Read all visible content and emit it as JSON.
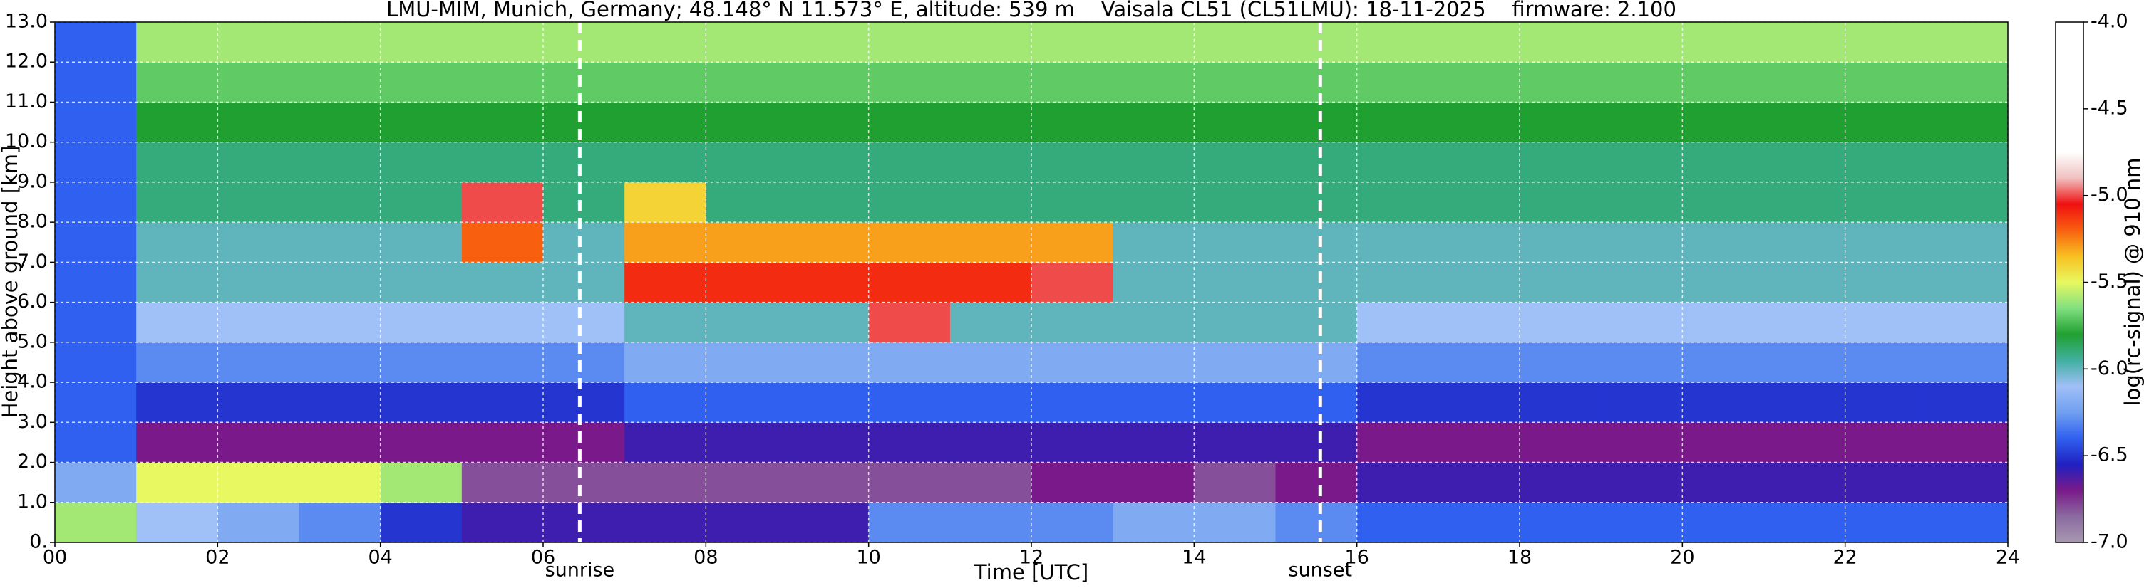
{
  "chart_data": {
    "type": "heatmap",
    "title": "LMU-MIM, Munich, Germany; 48.148° N 11.573° E, altitude: 539 m    Vaisala CL51 (CL51LMU): 18-11-2025    firmware: 2.100",
    "xlabel": "Time [UTC]",
    "ylabel": "Height above ground [km]",
    "colorbar_label": "log(rc-signal) @ 910 nm",
    "xlim": [
      0,
      24
    ],
    "ylim": [
      0,
      13
    ],
    "xticks": [
      {
        "value": 0,
        "label": "00"
      },
      {
        "value": 2,
        "label": "02"
      },
      {
        "value": 4,
        "label": "04"
      },
      {
        "value": 6,
        "label": "06"
      },
      {
        "value": 8,
        "label": "08"
      },
      10,
      12,
      14,
      16,
      18,
      20,
      22,
      24
    ],
    "yticks": [
      {
        "value": 0,
        "label": "0."
      },
      {
        "value": 1,
        "label": "1.0"
      },
      {
        "value": 2,
        "label": "2.0"
      },
      {
        "value": 3,
        "label": "3.0"
      },
      {
        "value": 4,
        "label": "4.0"
      },
      {
        "value": 5,
        "label": "5.0"
      },
      {
        "value": 6,
        "label": "6.0"
      },
      {
        "value": 7,
        "label": "7.0"
      },
      {
        "value": 8,
        "label": "8.0"
      },
      {
        "value": 9,
        "label": "9.0"
      },
      {
        "value": 10,
        "label": "10.0"
      },
      {
        "value": 11,
        "label": "11.0"
      },
      {
        "value": 12,
        "label": "12.0"
      },
      {
        "value": 13,
        "label": "13.0"
      }
    ],
    "clim": [
      -7,
      -4
    ],
    "cticks": [
      {
        "value": -7,
        "label": "-7.0"
      },
      -6.5,
      {
        "value": -6,
        "label": "-6.0"
      },
      -5.5,
      {
        "value": -5,
        "label": "-5.0"
      },
      -4.5,
      {
        "value": -4,
        "label": "-4.0"
      }
    ],
    "colorscale": [
      "#a898b0",
      "#8a6aa0",
      "#7a1a8a",
      "#2020c0",
      "#3060f0",
      "#70a0f0",
      "#a0c0f8",
      "#40b0a0",
      "#20a030",
      "#80e080",
      "#e8f860",
      "#f8c020",
      "#f86010",
      "#f01010",
      "#f0c0c0",
      "#ffffff",
      "#ffffff",
      "#ffffff",
      "#ffffff",
      "#ffffff",
      "#ffffff"
    ],
    "grid": true,
    "xbins": [
      0,
      1,
      2,
      3,
      4,
      5,
      6,
      7,
      8,
      9,
      10,
      11,
      12,
      13,
      14,
      15,
      16,
      17,
      18,
      19,
      20,
      21,
      22,
      23,
      24
    ],
    "ybins": [
      0,
      1,
      2,
      3,
      4,
      5,
      6,
      7,
      8,
      9,
      10,
      11,
      12,
      13
    ],
    "z": [
      [
        -5.6,
        -6.1,
        -6.2,
        -6.3,
        -6.5,
        -6.6,
        -6.6,
        -6.6,
        -6.6,
        -6.6,
        -6.3,
        -6.3,
        -6.3,
        -6.2,
        -6.2,
        -6.3,
        -6.4,
        -6.4,
        -6.4,
        -6.4,
        -6.4,
        -6.4,
        -6.4,
        -6.4
      ],
      [
        -6.2,
        -5.5,
        -5.5,
        -5.5,
        -5.6,
        -6.8,
        -6.8,
        -6.8,
        -6.8,
        -6.8,
        -6.8,
        -6.8,
        -6.7,
        -6.7,
        -6.8,
        -6.7,
        -6.6,
        -6.6,
        -6.6,
        -6.6,
        -6.6,
        -6.6,
        -6.6,
        -6.6
      ],
      [
        -6.4,
        -6.7,
        -6.7,
        -6.7,
        -6.7,
        -6.7,
        -6.7,
        -6.6,
        -6.6,
        -6.6,
        -6.6,
        -6.6,
        -6.6,
        -6.6,
        -6.6,
        -6.6,
        -6.7,
        -6.7,
        -6.7,
        -6.7,
        -6.7,
        -6.7,
        -6.7,
        -6.7
      ],
      [
        -6.4,
        -6.5,
        -6.5,
        -6.5,
        -6.5,
        -6.5,
        -6.5,
        -6.4,
        -6.4,
        -6.4,
        -6.4,
        -6.4,
        -6.4,
        -6.4,
        -6.4,
        -6.4,
        -6.5,
        -6.5,
        -6.5,
        -6.5,
        -6.5,
        -6.5,
        -6.5,
        -6.5
      ],
      [
        -6.4,
        -6.3,
        -6.3,
        -6.3,
        -6.3,
        -6.3,
        -6.3,
        -6.2,
        -6.2,
        -6.2,
        -6.2,
        -6.2,
        -6.2,
        -6.2,
        -6.2,
        -6.2,
        -6.3,
        -6.3,
        -6.3,
        -6.3,
        -6.3,
        -6.3,
        -6.3,
        -6.3
      ],
      [
        -6.4,
        -6.1,
        -6.1,
        -6.1,
        -6.1,
        -6.1,
        -6.1,
        -6.0,
        -6.0,
        -6.0,
        -5.0,
        -6.0,
        -6.0,
        -6.0,
        -6.0,
        -6.0,
        -6.1,
        -6.1,
        -6.1,
        -6.1,
        -6.1,
        -6.1,
        -6.1,
        -6.1
      ],
      [
        -6.4,
        -6.0,
        -6.0,
        -6.0,
        -6.0,
        -6.0,
        -6.0,
        -5.1,
        -5.1,
        -5.1,
        -5.1,
        -5.1,
        -5.0,
        -6.0,
        -6.0,
        -6.0,
        -6.0,
        -6.0,
        -6.0,
        -6.0,
        -6.0,
        -6.0,
        -6.0,
        -6.0
      ],
      [
        -6.4,
        -6.0,
        -6.0,
        -6.0,
        -6.0,
        -5.2,
        -6.0,
        -5.3,
        -5.3,
        -5.3,
        -5.3,
        -5.3,
        -5.3,
        -6.0,
        -6.0,
        -6.0,
        -6.0,
        -6.0,
        -6.0,
        -6.0,
        -6.0,
        -6.0,
        -6.0,
        -6.0
      ],
      [
        -6.4,
        -5.9,
        -5.9,
        -5.9,
        -5.9,
        -5.0,
        -5.9,
        -5.4,
        -5.9,
        -5.9,
        -5.9,
        -5.9,
        -5.9,
        -5.9,
        -5.9,
        -5.9,
        -5.9,
        -5.9,
        -5.9,
        -5.9,
        -5.9,
        -5.9,
        -5.9,
        -5.9
      ],
      [
        -6.4,
        -5.9,
        -5.9,
        -5.9,
        -5.9,
        -5.9,
        -5.9,
        -5.9,
        -5.9,
        -5.9,
        -5.9,
        -5.9,
        -5.9,
        -5.9,
        -5.9,
        -5.9,
        -5.9,
        -5.9,
        -5.9,
        -5.9,
        -5.9,
        -5.9,
        -5.9,
        -5.9
      ],
      [
        -6.4,
        -5.8,
        -5.8,
        -5.8,
        -5.8,
        -5.8,
        -5.8,
        -5.8,
        -5.8,
        -5.8,
        -5.8,
        -5.8,
        -5.8,
        -5.8,
        -5.8,
        -5.8,
        -5.8,
        -5.8,
        -5.8,
        -5.8,
        -5.8,
        -5.8,
        -5.8,
        -5.8
      ],
      [
        -6.4,
        -5.7,
        -5.7,
        -5.7,
        -5.7,
        -5.7,
        -5.7,
        -5.7,
        -5.7,
        -5.7,
        -5.7,
        -5.7,
        -5.7,
        -5.7,
        -5.7,
        -5.7,
        -5.7,
        -5.7,
        -5.7,
        -5.7,
        -5.7,
        -5.7,
        -5.7,
        -5.7
      ],
      [
        -6.4,
        -5.6,
        -5.6,
        -5.6,
        -5.6,
        -5.6,
        -5.6,
        -5.6,
        -5.6,
        -5.6,
        -5.6,
        -5.6,
        -5.6,
        -5.6,
        -5.6,
        -5.6,
        -5.6,
        -5.6,
        -5.6,
        -5.6,
        -5.6,
        -5.6,
        -5.6,
        -5.6
      ]
    ],
    "annotations": [
      {
        "text": "sunrise",
        "x": 6.45
      },
      {
        "text": "sunset",
        "x": 15.55
      }
    ]
  }
}
